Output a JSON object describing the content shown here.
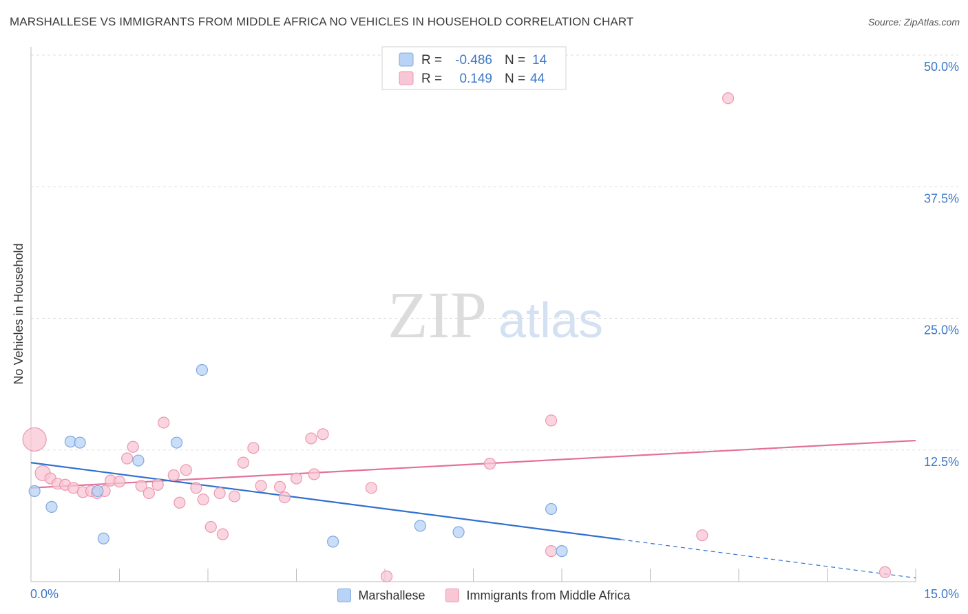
{
  "header": {
    "title": "MARSHALLESE VS IMMIGRANTS FROM MIDDLE AFRICA NO VEHICLES IN HOUSEHOLD CORRELATION CHART",
    "source": "Source: ZipAtlas.com"
  },
  "watermark": {
    "zip": "ZIP",
    "atlas": "atlas"
  },
  "colors": {
    "blue_fill": "#b8d3f5",
    "blue_stroke": "#7fa8de",
    "blue_line": "#2f6fd0",
    "pink_fill": "#f8c6d4",
    "pink_stroke": "#eb97b0",
    "pink_line": "#e3709a",
    "tick_text": "#3d78c9"
  },
  "legend_box": {
    "rows": [
      {
        "r_label": "R =",
        "r_value": "-0.486",
        "n_label": "N =",
        "n_value": "14"
      },
      {
        "r_label": "R =",
        "r_value": "0.149",
        "n_label": "N =",
        "n_value": "44"
      }
    ]
  },
  "chart_data": {
    "type": "scatter",
    "title": "MARSHALLESE VS IMMIGRANTS FROM MIDDLE AFRICA NO VEHICLES IN HOUSEHOLD CORRELATION CHART",
    "xlabel": "",
    "ylabel": "No Vehicles in Household",
    "xlim": [
      0,
      15
    ],
    "ylim": [
      0,
      50
    ],
    "x_tick_labels": [
      "0.0%",
      "15.0%"
    ],
    "y_ticks": [
      12.5,
      25.0,
      37.5,
      50.0
    ],
    "y_tick_labels": [
      "12.5%",
      "25.0%",
      "37.5%",
      "50.0%"
    ],
    "grid": true,
    "series": [
      {
        "name": "Marshallese",
        "r": -0.486,
        "n": 14,
        "points": [
          {
            "x": 0.06,
            "y": 8.6
          },
          {
            "x": 0.35,
            "y": 7.1
          },
          {
            "x": 0.67,
            "y": 13.3
          },
          {
            "x": 0.83,
            "y": 13.2
          },
          {
            "x": 1.13,
            "y": 8.6
          },
          {
            "x": 1.23,
            "y": 4.1
          },
          {
            "x": 1.82,
            "y": 11.5
          },
          {
            "x": 2.47,
            "y": 13.2
          },
          {
            "x": 2.9,
            "y": 20.1
          },
          {
            "x": 5.12,
            "y": 3.8
          },
          {
            "x": 6.6,
            "y": 5.3
          },
          {
            "x": 7.25,
            "y": 4.7
          },
          {
            "x": 8.82,
            "y": 6.9
          },
          {
            "x": 9.0,
            "y": 2.9
          }
        ],
        "trend": {
          "x0": 0.0,
          "y0": 11.3,
          "x1": 10.0,
          "y1": 4.0,
          "dash_to_x": 15.0,
          "dash_to_y": 0.35
        }
      },
      {
        "name": "Immigrants from Middle Africa",
        "r": 0.149,
        "n": 44,
        "points": [
          {
            "x": 0.06,
            "y": 13.5
          },
          {
            "x": 0.2,
            "y": 10.3
          },
          {
            "x": 0.33,
            "y": 9.8
          },
          {
            "x": 0.45,
            "y": 9.3
          },
          {
            "x": 0.58,
            "y": 9.2
          },
          {
            "x": 0.72,
            "y": 8.9
          },
          {
            "x": 0.88,
            "y": 8.5
          },
          {
            "x": 1.02,
            "y": 8.6
          },
          {
            "x": 1.12,
            "y": 8.4
          },
          {
            "x": 1.25,
            "y": 8.6
          },
          {
            "x": 1.35,
            "y": 9.6
          },
          {
            "x": 1.5,
            "y": 9.5
          },
          {
            "x": 1.63,
            "y": 11.7
          },
          {
            "x": 1.73,
            "y": 12.8
          },
          {
            "x": 1.87,
            "y": 9.1
          },
          {
            "x": 2.0,
            "y": 8.4
          },
          {
            "x": 2.15,
            "y": 9.2
          },
          {
            "x": 2.25,
            "y": 15.1
          },
          {
            "x": 2.42,
            "y": 10.1
          },
          {
            "x": 2.52,
            "y": 7.5
          },
          {
            "x": 2.63,
            "y": 10.6
          },
          {
            "x": 2.8,
            "y": 8.9
          },
          {
            "x": 2.92,
            "y": 7.8
          },
          {
            "x": 3.05,
            "y": 5.2
          },
          {
            "x": 3.2,
            "y": 8.4
          },
          {
            "x": 3.25,
            "y": 4.5
          },
          {
            "x": 3.45,
            "y": 8.1
          },
          {
            "x": 3.6,
            "y": 11.3
          },
          {
            "x": 3.77,
            "y": 12.7
          },
          {
            "x": 3.9,
            "y": 9.1
          },
          {
            "x": 4.22,
            "y": 9.0
          },
          {
            "x": 4.3,
            "y": 8.0
          },
          {
            "x": 4.5,
            "y": 9.8
          },
          {
            "x": 4.75,
            "y": 13.6
          },
          {
            "x": 4.8,
            "y": 10.2
          },
          {
            "x": 4.95,
            "y": 14.0
          },
          {
            "x": 5.77,
            "y": 8.9
          },
          {
            "x": 6.03,
            "y": 0.5
          },
          {
            "x": 7.78,
            "y": 11.2
          },
          {
            "x": 8.82,
            "y": 15.3
          },
          {
            "x": 8.82,
            "y": 2.9
          },
          {
            "x": 11.38,
            "y": 4.4
          },
          {
            "x": 11.82,
            "y": 45.9
          },
          {
            "x": 14.48,
            "y": 0.9
          }
        ],
        "trend": {
          "x0": 0.0,
          "y0": 8.9,
          "x1": 15.0,
          "y1": 13.4
        }
      }
    ]
  },
  "legend_bottom": {
    "items": [
      {
        "label": "Marshallese"
      },
      {
        "label": "Immigrants from Middle Africa"
      }
    ]
  }
}
